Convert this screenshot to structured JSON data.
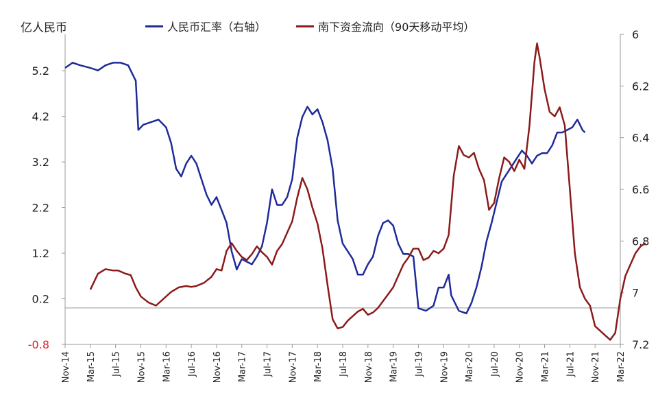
{
  "chart_data": {
    "type": "line",
    "unit_label": "亿人民币",
    "legend": [
      {
        "name": "人民币汇率（右轴）",
        "color": "#1f2a9a"
      },
      {
        "name": "南下资金流向（90天移动平均）",
        "color": "#8b1a1a"
      }
    ],
    "x_ticks": [
      "Nov-14",
      "Mar-15",
      "Jul-15",
      "Nov-15",
      "Mar-16",
      "Jul-16",
      "Nov-16",
      "Mar-17",
      "Jul-17",
      "Nov-17",
      "Mar-18",
      "Jul-18",
      "Nov-18",
      "Mar-19",
      "Jul-19",
      "Nov-19",
      "Mar-20",
      "Jul-20",
      "Nov-20",
      "Mar-21",
      "Jul-21",
      "Nov-21",
      "Mar-22"
    ],
    "y_left": {
      "ticks": [
        5.2,
        4.2,
        3.2,
        2.2,
        1.2,
        0.2,
        -0.8
      ],
      "ylim": [
        -0.8,
        6.0
      ]
    },
    "y_right": {
      "ticks": [
        6,
        6.2,
        6.4,
        6.6,
        6.8,
        7,
        7.2
      ],
      "ylim": [
        6.0,
        7.2
      ],
      "inverted": true
    },
    "series": [
      {
        "name": "人民币汇率（右轴）",
        "axis": "right",
        "color": "#1f2a9a",
        "points": [
          [
            0,
            6.13
          ],
          [
            0.3,
            6.11
          ],
          [
            0.6,
            6.12
          ],
          [
            1.0,
            6.13
          ],
          [
            1.3,
            6.14
          ],
          [
            1.6,
            6.12
          ],
          [
            1.9,
            6.11
          ],
          [
            2.2,
            6.11
          ],
          [
            2.5,
            6.12
          ],
          [
            2.8,
            6.18
          ],
          [
            2.9,
            6.37
          ],
          [
            3.1,
            6.35
          ],
          [
            3.4,
            6.34
          ],
          [
            3.7,
            6.33
          ],
          [
            4.0,
            6.36
          ],
          [
            4.2,
            6.42
          ],
          [
            4.4,
            6.52
          ],
          [
            4.6,
            6.55
          ],
          [
            4.8,
            6.5
          ],
          [
            5.0,
            6.47
          ],
          [
            5.2,
            6.5
          ],
          [
            5.4,
            6.56
          ],
          [
            5.6,
            6.62
          ],
          [
            5.8,
            6.66
          ],
          [
            6.0,
            6.63
          ],
          [
            6.2,
            6.68
          ],
          [
            6.4,
            6.73
          ],
          [
            6.6,
            6.84
          ],
          [
            6.8,
            6.91
          ],
          [
            7.0,
            6.87
          ],
          [
            7.2,
            6.88
          ],
          [
            7.4,
            6.89
          ],
          [
            7.6,
            6.86
          ],
          [
            7.8,
            6.82
          ],
          [
            8.0,
            6.73
          ],
          [
            8.2,
            6.6
          ],
          [
            8.4,
            6.66
          ],
          [
            8.6,
            6.66
          ],
          [
            8.8,
            6.63
          ],
          [
            9.0,
            6.56
          ],
          [
            9.2,
            6.4
          ],
          [
            9.4,
            6.32
          ],
          [
            9.6,
            6.28
          ],
          [
            9.8,
            6.31
          ],
          [
            10.0,
            6.29
          ],
          [
            10.2,
            6.34
          ],
          [
            10.4,
            6.41
          ],
          [
            10.6,
            6.52
          ],
          [
            10.8,
            6.72
          ],
          [
            11.0,
            6.81
          ],
          [
            11.2,
            6.84
          ],
          [
            11.4,
            6.87
          ],
          [
            11.6,
            6.93
          ],
          [
            11.8,
            6.93
          ],
          [
            12.0,
            6.89
          ],
          [
            12.2,
            6.86
          ],
          [
            12.4,
            6.78
          ],
          [
            12.6,
            6.73
          ],
          [
            12.8,
            6.72
          ],
          [
            13.0,
            6.74
          ],
          [
            13.2,
            6.81
          ],
          [
            13.4,
            6.85
          ],
          [
            13.6,
            6.85
          ],
          [
            13.8,
            6.86
          ],
          [
            14.0,
            7.06
          ],
          [
            14.3,
            7.07
          ],
          [
            14.6,
            7.05
          ],
          [
            14.8,
            6.98
          ],
          [
            15.0,
            6.98
          ],
          [
            15.2,
            6.93
          ],
          [
            15.3,
            7.01
          ],
          [
            15.6,
            7.07
          ],
          [
            15.9,
            7.08
          ],
          [
            16.1,
            7.04
          ],
          [
            16.3,
            6.98
          ],
          [
            16.5,
            6.9
          ],
          [
            16.7,
            6.8
          ],
          [
            16.9,
            6.73
          ],
          [
            17.1,
            6.65
          ],
          [
            17.3,
            6.57
          ],
          [
            17.5,
            6.54
          ],
          [
            17.7,
            6.51
          ],
          [
            17.9,
            6.48
          ],
          [
            18.1,
            6.45
          ],
          [
            18.3,
            6.47
          ],
          [
            18.5,
            6.5
          ],
          [
            18.7,
            6.47
          ],
          [
            18.9,
            6.46
          ],
          [
            19.1,
            6.46
          ],
          [
            19.3,
            6.43
          ],
          [
            19.5,
            6.38
          ],
          [
            19.7,
            6.38
          ],
          [
            19.9,
            6.37
          ],
          [
            20.1,
            6.36
          ],
          [
            20.3,
            6.33
          ],
          [
            20.5,
            6.37
          ],
          [
            20.6,
            6.38
          ]
        ]
      },
      {
        "name": "南下资金流向（90天移动平均）",
        "axis": "left",
        "color": "#8b1a1a",
        "points": [
          [
            1.0,
            0.4
          ],
          [
            1.3,
            0.75
          ],
          [
            1.6,
            0.85
          ],
          [
            1.9,
            0.82
          ],
          [
            2.1,
            0.82
          ],
          [
            2.4,
            0.75
          ],
          [
            2.6,
            0.72
          ],
          [
            2.8,
            0.45
          ],
          [
            3.0,
            0.25
          ],
          [
            3.3,
            0.12
          ],
          [
            3.6,
            0.05
          ],
          [
            3.9,
            0.2
          ],
          [
            4.2,
            0.35
          ],
          [
            4.5,
            0.45
          ],
          [
            4.8,
            0.48
          ],
          [
            5.0,
            0.46
          ],
          [
            5.2,
            0.48
          ],
          [
            5.5,
            0.55
          ],
          [
            5.8,
            0.68
          ],
          [
            6.0,
            0.85
          ],
          [
            6.2,
            0.82
          ],
          [
            6.4,
            1.25
          ],
          [
            6.6,
            1.42
          ],
          [
            6.8,
            1.25
          ],
          [
            7.0,
            1.12
          ],
          [
            7.2,
            1.05
          ],
          [
            7.4,
            1.18
          ],
          [
            7.6,
            1.35
          ],
          [
            7.8,
            1.22
          ],
          [
            8.0,
            1.12
          ],
          [
            8.2,
            0.95
          ],
          [
            8.4,
            1.25
          ],
          [
            8.6,
            1.4
          ],
          [
            8.8,
            1.65
          ],
          [
            9.0,
            1.9
          ],
          [
            9.2,
            2.42
          ],
          [
            9.4,
            2.85
          ],
          [
            9.6,
            2.6
          ],
          [
            9.8,
            2.2
          ],
          [
            10.0,
            1.85
          ],
          [
            10.2,
            1.3
          ],
          [
            10.4,
            0.5
          ],
          [
            10.6,
            -0.25
          ],
          [
            10.8,
            -0.45
          ],
          [
            11.0,
            -0.42
          ],
          [
            11.2,
            -0.28
          ],
          [
            11.4,
            -0.18
          ],
          [
            11.6,
            -0.08
          ],
          [
            11.8,
            -0.02
          ],
          [
            12.0,
            -0.15
          ],
          [
            12.2,
            -0.1
          ],
          [
            12.4,
            0.0
          ],
          [
            12.6,
            0.15
          ],
          [
            12.8,
            0.3
          ],
          [
            13.0,
            0.45
          ],
          [
            13.2,
            0.7
          ],
          [
            13.4,
            0.95
          ],
          [
            13.6,
            1.1
          ],
          [
            13.8,
            1.3
          ],
          [
            14.0,
            1.3
          ],
          [
            14.2,
            1.05
          ],
          [
            14.4,
            1.1
          ],
          [
            14.6,
            1.25
          ],
          [
            14.8,
            1.2
          ],
          [
            15.0,
            1.3
          ],
          [
            15.2,
            1.6
          ],
          [
            15.4,
            2.9
          ],
          [
            15.6,
            3.55
          ],
          [
            15.8,
            3.35
          ],
          [
            16.0,
            3.3
          ],
          [
            16.2,
            3.4
          ],
          [
            16.4,
            3.05
          ],
          [
            16.6,
            2.8
          ],
          [
            16.8,
            2.15
          ],
          [
            17.0,
            2.3
          ],
          [
            17.2,
            2.85
          ],
          [
            17.4,
            3.3
          ],
          [
            17.6,
            3.2
          ],
          [
            17.8,
            3.0
          ],
          [
            18.0,
            3.25
          ],
          [
            18.2,
            3.05
          ],
          [
            18.4,
            4.0
          ],
          [
            18.6,
            5.4
          ],
          [
            18.7,
            5.8
          ],
          [
            18.8,
            5.5
          ],
          [
            19.0,
            4.8
          ],
          [
            19.2,
            4.3
          ],
          [
            19.4,
            4.2
          ],
          [
            19.6,
            4.4
          ],
          [
            19.8,
            4.0
          ],
          [
            20.0,
            2.6
          ],
          [
            20.2,
            1.2
          ],
          [
            20.4,
            0.45
          ],
          [
            20.6,
            0.2
          ],
          [
            20.8,
            0.05
          ],
          [
            21.0,
            -0.4
          ],
          [
            21.3,
            -0.55
          ],
          [
            21.6,
            -0.7
          ],
          [
            21.8,
            -0.55
          ],
          [
            22.0,
            0.2
          ],
          [
            22.2,
            0.7
          ],
          [
            22.4,
            0.95
          ],
          [
            22.6,
            1.2
          ],
          [
            22.8,
            1.35
          ],
          [
            23.0,
            1.42
          ]
        ]
      }
    ],
    "grid": false,
    "legend_placement": "top"
  }
}
